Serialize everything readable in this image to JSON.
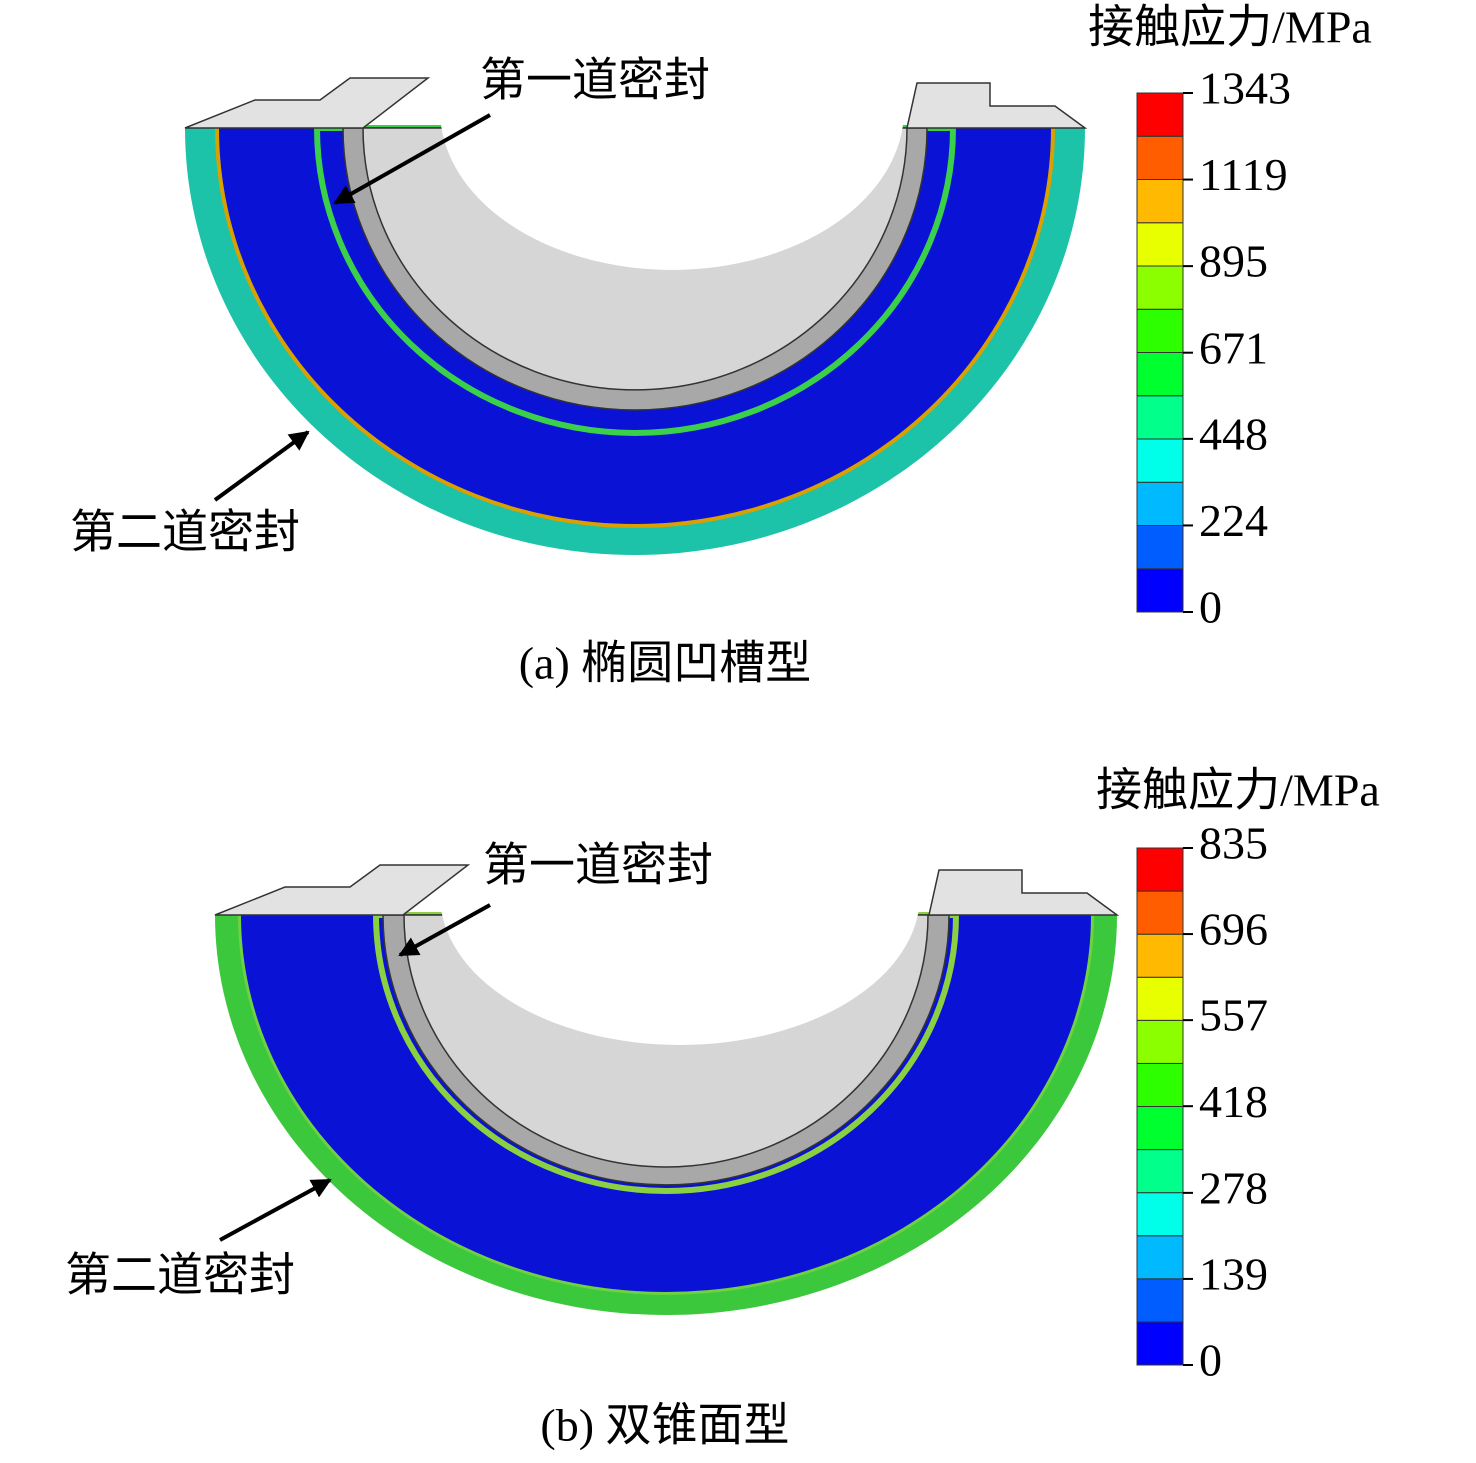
{
  "panels": [
    {
      "colorbar": {
        "title": "接触应力/MPa",
        "ticks": [
          1343,
          1119,
          895,
          671,
          448,
          224,
          0
        ],
        "colors": [
          "#0000ff",
          "#005dff",
          "#00b9ff",
          "#00ffe8",
          "#00ff8b",
          "#00ff2e",
          "#2eff00",
          "#8bff00",
          "#e8ff00",
          "#ffb900",
          "#ff5d00",
          "#ff0000"
        ]
      },
      "annotations": [
        "第一道密封",
        "第二道密封"
      ],
      "caption": "(a) 椭圆凹槽型"
    },
    {
      "colorbar": {
        "title": "接触应力/MPa",
        "ticks": [
          835,
          696,
          557,
          418,
          278,
          139,
          0
        ],
        "colors": [
          "#0000ff",
          "#005dff",
          "#00b9ff",
          "#00ffe8",
          "#00ff8b",
          "#00ff2e",
          "#2eff00",
          "#8bff00",
          "#e8ff00",
          "#ffb900",
          "#ff5d00",
          "#ff0000"
        ]
      },
      "annotations": [
        "第一道密封",
        "第二道密封"
      ],
      "caption": "(b) 双锥面型"
    }
  ]
}
